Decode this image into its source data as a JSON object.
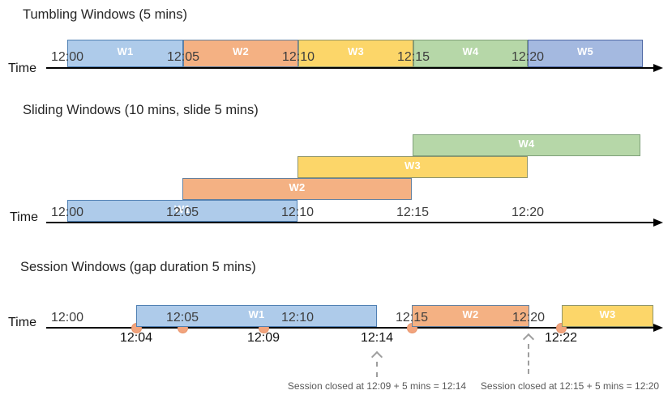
{
  "figure": {
    "type": "stream-windowing-diagram",
    "background": "#ffffff"
  },
  "palette": {
    "blue": {
      "fill": "#AECBEA",
      "border": "#5080B3"
    },
    "orange": {
      "fill": "#F4B183",
      "border": "#64819F"
    },
    "yellow": {
      "fill": "#FCD669",
      "border": "#90956B"
    },
    "green": {
      "fill": "#B6D7A8",
      "border": "#7FA07A"
    },
    "blue2": {
      "fill": "#A4B9E0",
      "border": "#4F69A5"
    },
    "dot_fill": "#F2A47D",
    "dot_border": "#E8956B",
    "axis": "#000000",
    "gray_arrow": "#9E9E9E",
    "tick_text": "#3D3D3D",
    "event_text": "#111111",
    "title_text": "#262626",
    "annotation_text": "#595959",
    "window_label_text": "#FFFFFF"
  },
  "sections": [
    {
      "title": "Tumbling Windows (5 mins)",
      "time_axis_label": "Time",
      "ticks": [
        "12:00",
        "12:05",
        "12:10",
        "12:15",
        "12:20"
      ],
      "windows": [
        {
          "label": "W1",
          "color": "blue",
          "start": "12:00",
          "end": "12:05"
        },
        {
          "label": "W2",
          "color": "orange",
          "start": "12:05",
          "end": "12:10"
        },
        {
          "label": "W3",
          "color": "yellow",
          "start": "12:10",
          "end": "12:15"
        },
        {
          "label": "W4",
          "color": "green",
          "start": "12:15",
          "end": "12:20"
        },
        {
          "label": "W5",
          "color": "blue2",
          "start": "12:20",
          "end": ""
        }
      ]
    },
    {
      "title": "Sliding Windows (10 mins, slide 5 mins)",
      "time_axis_label": "Time",
      "ticks": [
        "12:00",
        "12:05",
        "12:10",
        "12:15",
        "12:20"
      ],
      "windows": [
        {
          "label": "W1",
          "color": "blue",
          "start": "12:00",
          "end": "12:10"
        },
        {
          "label": "W2",
          "color": "orange",
          "start": "12:05",
          "end": "12:15"
        },
        {
          "label": "W3",
          "color": "yellow",
          "start": "12:10",
          "end": "12:20"
        },
        {
          "label": "W4",
          "color": "green",
          "start": "12:15",
          "end": ""
        }
      ]
    },
    {
      "title": "Session Windows (gap duration 5 mins)",
      "time_axis_label": "Time",
      "ticks": [
        "12:00",
        "12:05",
        "12:10",
        "12:15",
        "12:20"
      ],
      "windows": [
        {
          "label": "W1",
          "color": "blue",
          "start": "12:04",
          "end": "12:14"
        },
        {
          "label": "W2",
          "color": "orange",
          "start": "12:15",
          "end": "12:20"
        },
        {
          "label": "W3",
          "color": "yellow",
          "start": "12:22",
          "end": ""
        }
      ],
      "event_dots": [
        "12:04",
        "12:05",
        "12:09",
        "12:15",
        "12:22"
      ],
      "event_labels": [
        "12:04",
        "12:09",
        "12:14",
        "12:22"
      ],
      "annotations": [
        "Session closed at 12:09 + 5 mins = 12:14",
        "Session closed at 12:15 + 5 mins = 12:20"
      ]
    }
  ]
}
